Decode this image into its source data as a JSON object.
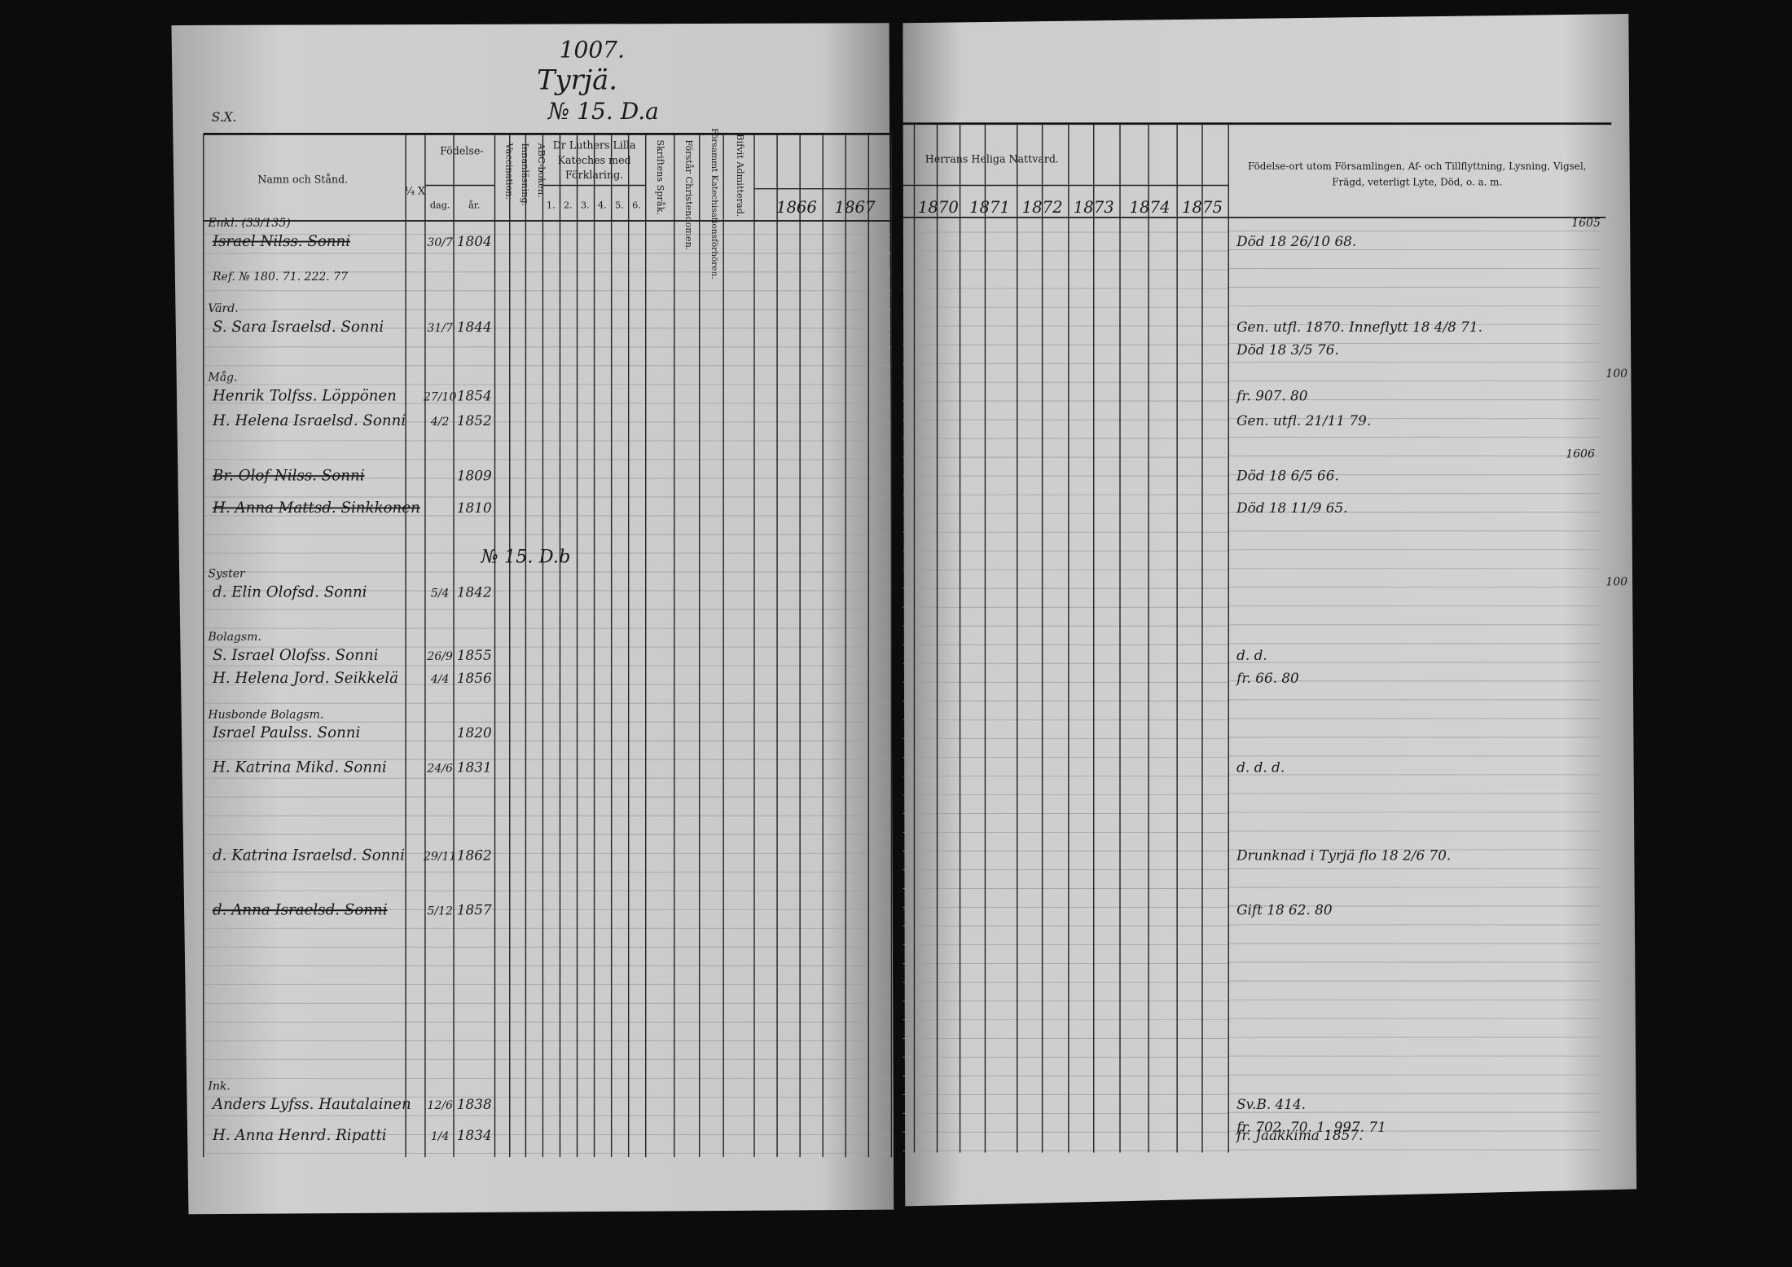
{
  "header": {
    "corner": "S.X.",
    "page_number": "1007.",
    "village": "Tyrjä.",
    "house": "№ 15. D.a"
  },
  "columns": {
    "name": "Namn och Stånd.",
    "marker": "¼ X",
    "birth": "Födelse-",
    "day": "dag.",
    "year": "år.",
    "vaccination": "Vaccination.",
    "reading": "Innanläsning.",
    "abc": "ABC-boken.",
    "catechism": [
      "Dr Luthers Lilla",
      "Kateches med",
      "Förklaring."
    ],
    "catechism_parts": [
      "1.",
      "2.",
      "3.",
      "4.",
      "5.",
      "6."
    ],
    "scripture": "Skriftens Språk.",
    "christianity": "Förstår Christendomen.",
    "catechisation": "Försammt Katechisationsförhören.",
    "admitted": "Bifvit Admitterad.",
    "communion": "Herrans Heliga Nattvard.",
    "communion_years": [
      "1866",
      "1867",
      "1870",
      "1871",
      "1872",
      "1873",
      "1874",
      "1875"
    ],
    "notes": [
      "Födelse-ort utom Församlingen, Af- och Tillflyttning, Lysning, Vigsel,",
      "Frägd, veterligt Lyte, Död, o. a. m."
    ]
  },
  "section_label": "№ 15. D.b",
  "rows": [
    {
      "title": "Enkl. (33/135)",
      "name": "Israel Nilss. Sonni",
      "day": "30/7",
      "year": "1804",
      "notes": [
        "Död 18 26/10 68."
      ]
    },
    {
      "name": "Ref. № 180. 71. 222. 77"
    },
    {
      "title": "Värd.",
      "name": "S. Sara Israelsd. Sonni",
      "day": "31/7",
      "year": "1844",
      "notes": [
        "Gen. utfl. 1870. Inneflytt 18 4/8 71.",
        "Död 18 3/5 76."
      ]
    },
    {
      "title": "Måg.",
      "name": "Henrik Tolfss. Löppönen",
      "day": "27/10",
      "year": "1854",
      "notes": [
        "fr. 907. 80"
      ]
    },
    {
      "name": "H. Helena Israelsd. Sonni",
      "day": "4/2",
      "year": "1852",
      "notes": [
        "Gen. utfl. 21/11 79."
      ]
    },
    {
      "name": "Br. Olof Nilss. Sonni",
      "year": "1809",
      "notes": [
        "Död 18 6/5 66."
      ]
    },
    {
      "name": "H. Anna Mattsd. Sinkkonen",
      "year": "1810",
      "notes": [
        "Död 18 11/9 65."
      ]
    },
    {
      "title": "Syster",
      "name": "d. Elin Olofsd. Sonni",
      "day": "5/4",
      "year": "1842"
    },
    {
      "title": "Bolagsm.",
      "name": "S. Israel Olofss. Sonni",
      "day": "26/9",
      "year": "1855",
      "notes": [
        "d.   d."
      ]
    },
    {
      "name": "H. Helena Jord. Seikkelä",
      "day": "4/4",
      "year": "1856",
      "notes": [
        "fr. 66. 80"
      ]
    },
    {
      "title": "Husbonde Bolagsm.",
      "name": "Israel Paulss. Sonni",
      "year": "1820"
    },
    {
      "name": "H. Katrina Mikd. Sonni",
      "day": "24/6",
      "year": "1831",
      "notes": [
        "d.      d.      d."
      ]
    },
    {
      "name": "d. Katrina Israelsd. Sonni",
      "day": "29/11",
      "year": "1862",
      "notes": [
        "Drunknad i Tyrjä flo 18 2/6 70."
      ]
    },
    {
      "name": "d. Anna Israelsd. Sonni",
      "day": "5/12",
      "year": "1857",
      "notes": [
        "Gift 18 62. 80"
      ]
    },
    {
      "title": "Ink.",
      "name": "Anders Lyfss. Hautalainen",
      "day": "12/6",
      "year": "1838",
      "notes": [
        "Sv.B. 414.",
        "fr. 702. 70.      1. 997. 71"
      ]
    },
    {
      "name": "H. Anna Henrd. Ripatti",
      "day": "1/4",
      "year": "1834",
      "notes": [
        "fr. Jaakkima 1857."
      ]
    }
  ],
  "margin_numbers": [
    "1605",
    "100",
    "1606",
    "100"
  ]
}
